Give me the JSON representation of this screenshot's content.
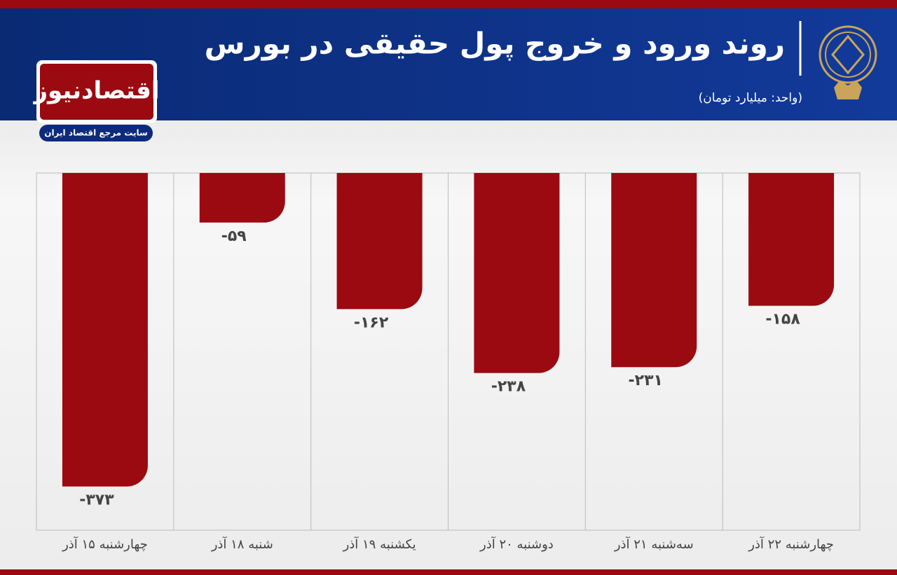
{
  "brand": {
    "name": "اقتصادنیوز",
    "tagline": "سایت مرجع اقتصاد ایران"
  },
  "chart_data": {
    "type": "bar",
    "title": "روند ورود و خروج پول حقیقی در بورس",
    "subtitle": "(واحد: میلیارد تومان)",
    "categories": [
      "چهارشنبه ۱۵ آذر",
      "شنبه ۱۸ آذر",
      "یکشنبه ۱۹ آذر",
      "دوشنبه ۲۰ آذر",
      "سه‌شنبه ۲۱ آذر",
      "چهارشنبه ۲۲ آذر"
    ],
    "values": [
      -373,
      -59,
      -162,
      -238,
      -231,
      -158
    ],
    "value_labels": [
      "-۳۷۳",
      "-۵۹",
      "-۱۶۲",
      "-۲۳۸",
      "-۲۳۱",
      "-۱۵۸"
    ],
    "color": "#9b0a10",
    "ylim": [
      -425,
      0
    ]
  }
}
